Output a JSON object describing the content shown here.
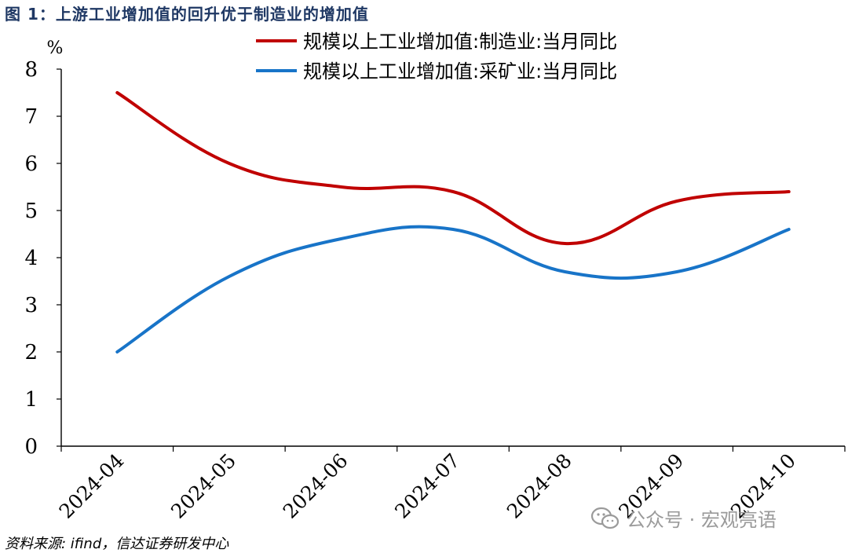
{
  "title": "图 1：上游工业增加值的回升优于制造业的增加值",
  "source": "资料来源: ifind，信达证券研发中心",
  "watermark": {
    "text": "公众号 · 宏观亮语",
    "icon": "wechat-icon"
  },
  "colors": {
    "manufacturing": "#c00000",
    "mining": "#1874c8",
    "axis": "#000000"
  },
  "chart_data": {
    "type": "line",
    "title": "",
    "ylabel": "%",
    "xlabel": "",
    "ylim": [
      0,
      8
    ],
    "yticks": [
      "0",
      "1",
      "2",
      "3",
      "4",
      "5",
      "6",
      "7",
      "8"
    ],
    "categories": [
      "2024-04",
      "2024-05",
      "2024-06",
      "2024-07",
      "2024-08",
      "2024-09",
      "2024-10"
    ],
    "grid": false,
    "legend_position": "top-center",
    "series": [
      {
        "name": "规模以上工业增加值:制造业:当月同比",
        "values": [
          7.5,
          6.0,
          5.5,
          5.4,
          4.3,
          5.2,
          5.4
        ]
      },
      {
        "name": "规模以上工业增加值:采矿业:当月同比",
        "values": [
          2.0,
          3.6,
          4.4,
          4.6,
          3.7,
          3.7,
          4.6
        ]
      }
    ]
  }
}
